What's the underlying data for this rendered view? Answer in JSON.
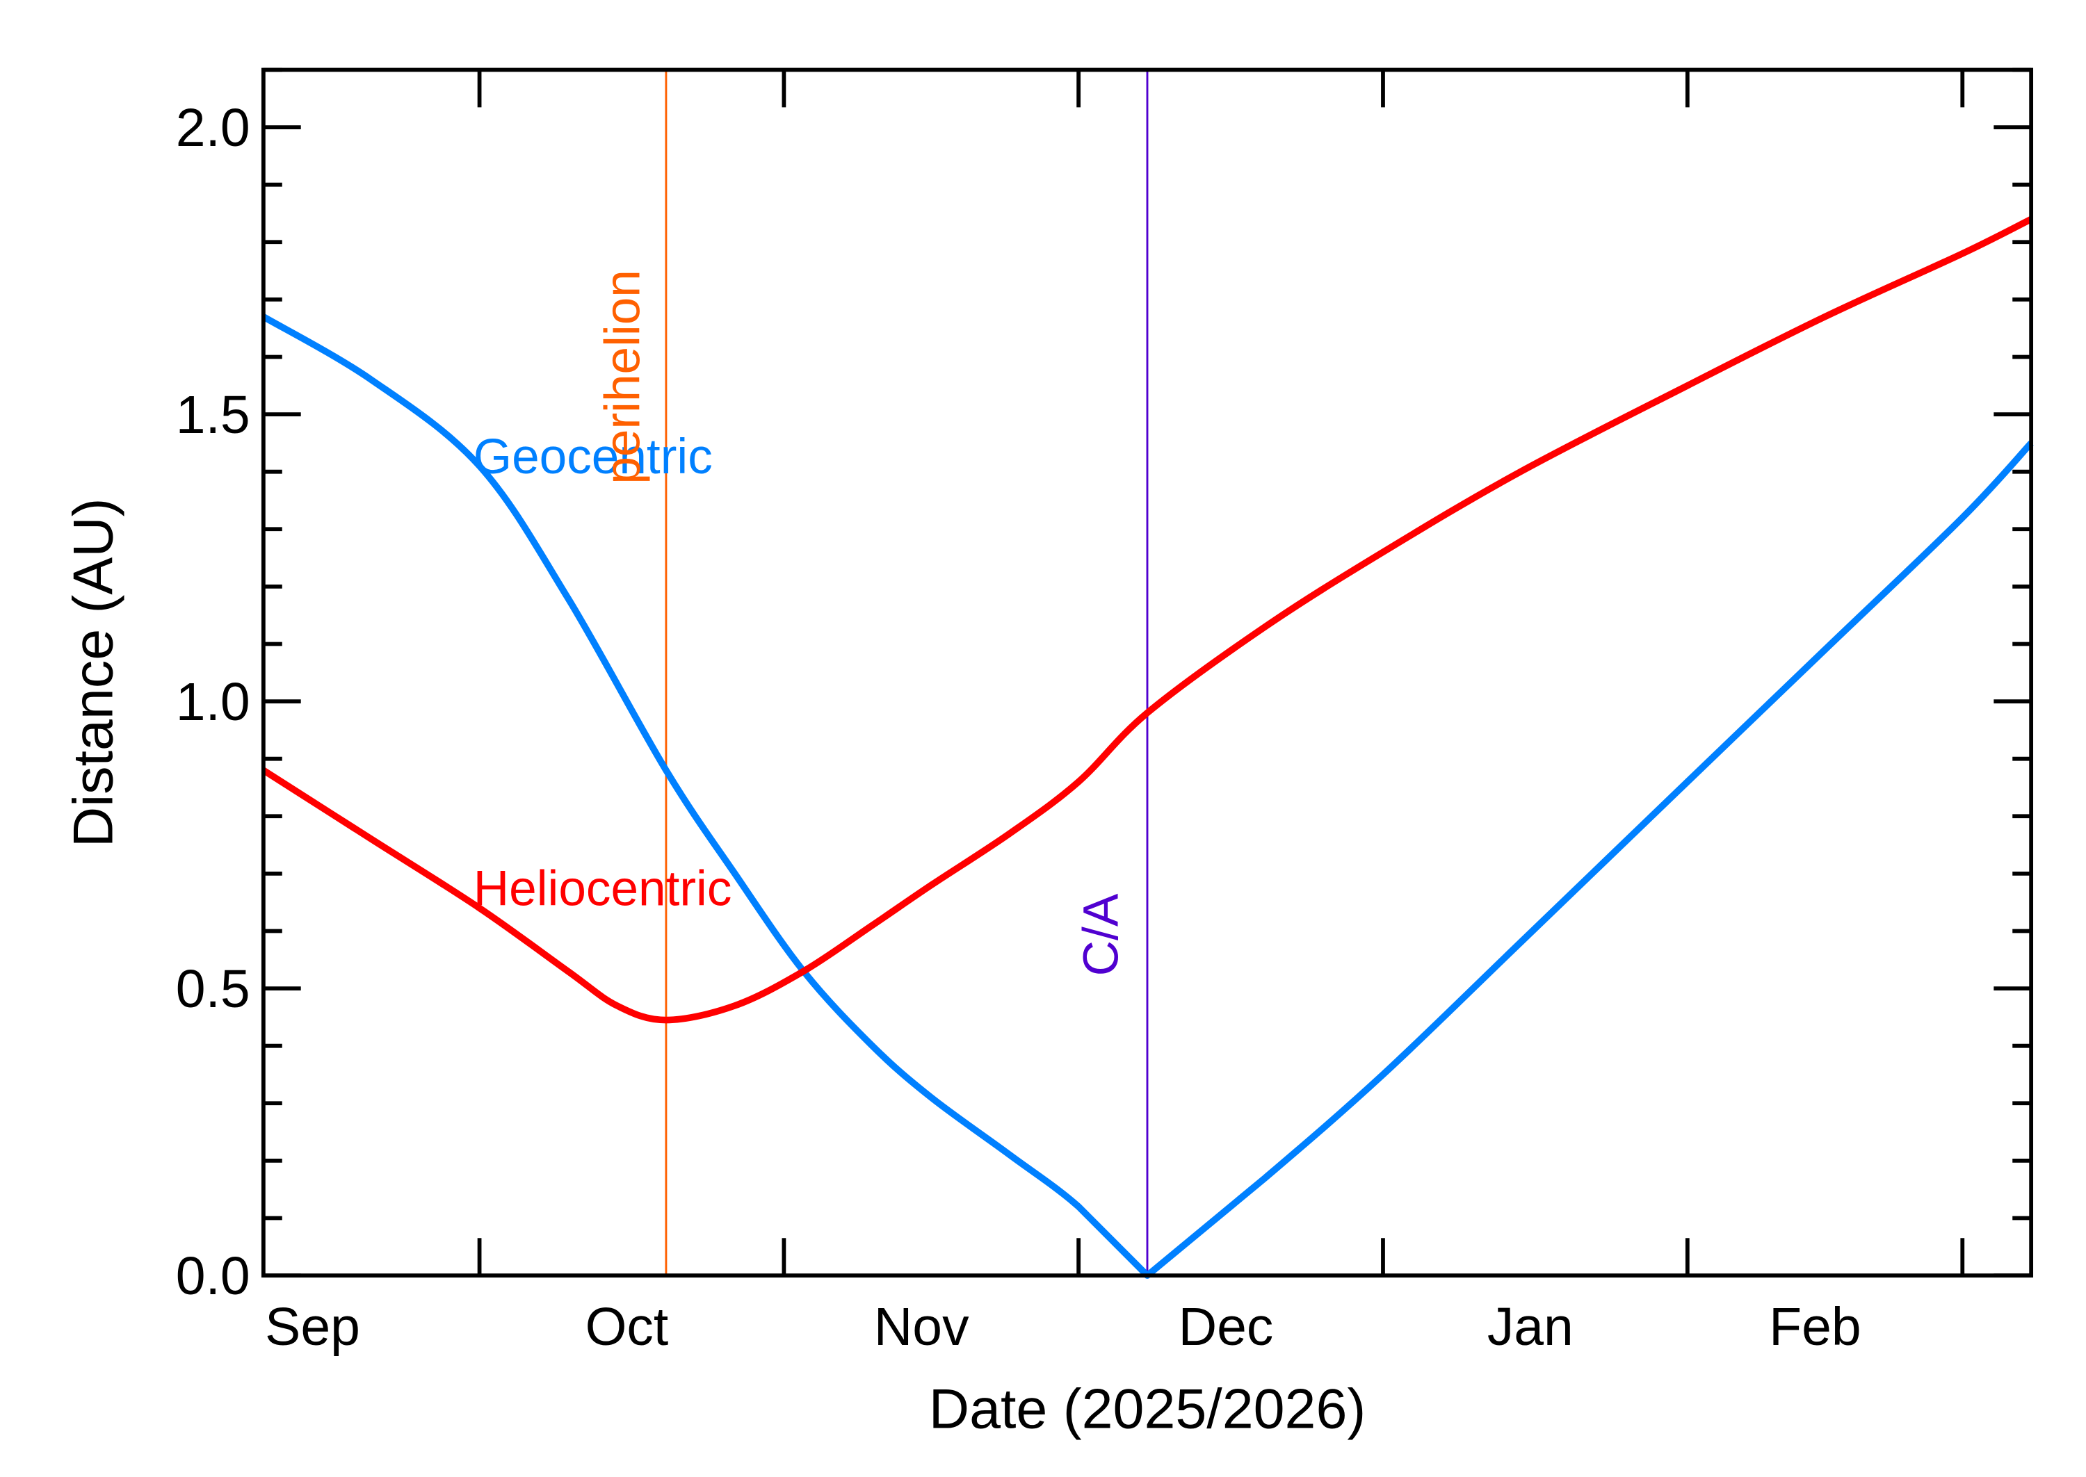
{
  "chart_data": {
    "type": "line",
    "xlabel": "Date (2025/2026)",
    "ylabel": "Distance (AU)",
    "xlim": [
      "2025-09-09",
      "2026-03-08"
    ],
    "ylim": [
      0.0,
      2.1
    ],
    "x_ticks": [
      "2025-10-01",
      "2025-11-01",
      "2025-12-01",
      "2026-01-01",
      "2026-02-01",
      "2026-03-01"
    ],
    "x_tick_labels": [
      {
        "label": "Sep",
        "date": "2025-09-14"
      },
      {
        "label": "Oct",
        "date": "2025-10-16"
      },
      {
        "label": "Nov",
        "date": "2025-11-15"
      },
      {
        "label": "Dec",
        "date": "2025-12-16"
      },
      {
        "label": "Jan",
        "date": "2026-01-16"
      },
      {
        "label": "Feb",
        "date": "2026-02-14"
      }
    ],
    "y_ticks": [
      0.0,
      0.5,
      1.0,
      1.5,
      2.0
    ],
    "y_tick_labels": [
      "0.0",
      "0.5",
      "1.0",
      "1.5",
      "2.0"
    ],
    "y_minor_step": 0.1,
    "grid": false,
    "series": [
      {
        "name": "Geocentric",
        "color": "#0080ff",
        "x": [
          "2025-09-09",
          "2025-09-20",
          "2025-10-01",
          "2025-10-10",
          "2025-10-20",
          "2025-10-27",
          "2025-11-03",
          "2025-11-10",
          "2025-11-16",
          "2025-11-24",
          "2025-12-01",
          "2025-12-08",
          "2025-12-20",
          "2026-01-01",
          "2026-01-15",
          "2026-02-01",
          "2026-02-15",
          "2026-03-01",
          "2026-03-08"
        ],
        "y": [
          1.67,
          1.56,
          1.41,
          1.18,
          0.88,
          0.7,
          0.53,
          0.4,
          0.31,
          0.21,
          0.12,
          0.0,
          0.17,
          0.35,
          0.58,
          0.86,
          1.09,
          1.32,
          1.45
        ]
      },
      {
        "name": "Heliocentric",
        "color": "#ff0000",
        "x": [
          "2025-09-09",
          "2025-09-20",
          "2025-10-01",
          "2025-10-10",
          "2025-10-15",
          "2025-10-20",
          "2025-10-27",
          "2025-11-03",
          "2025-11-10",
          "2025-11-16",
          "2025-11-24",
          "2025-12-01",
          "2025-12-08",
          "2025-12-20",
          "2026-01-01",
          "2026-01-15",
          "2026-02-01",
          "2026-02-15",
          "2026-03-01",
          "2026-03-08"
        ],
        "y": [
          0.88,
          0.76,
          0.64,
          0.53,
          0.47,
          0.445,
          0.47,
          0.53,
          0.61,
          0.68,
          0.77,
          0.86,
          0.98,
          1.13,
          1.26,
          1.4,
          1.55,
          1.67,
          1.78,
          1.84
        ]
      }
    ],
    "markers": [
      {
        "label": "perihelion",
        "date": "2025-10-20",
        "color": "#ff6000"
      },
      {
        "label": "C/A",
        "date": "2025-12-08",
        "color": "#5000d0"
      }
    ]
  }
}
